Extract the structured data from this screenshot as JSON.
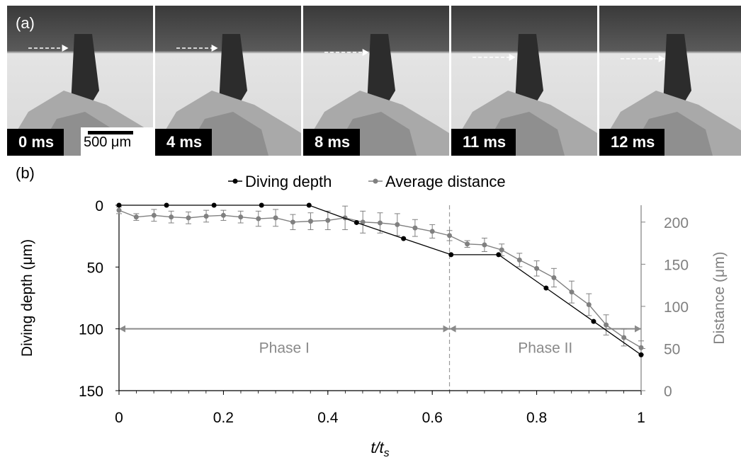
{
  "panel_a": {
    "label": "(a)",
    "frames": [
      {
        "time": "0 ms",
        "arrow_end": 0.42
      },
      {
        "time": "4 ms",
        "arrow_end": 0.43
      },
      {
        "time": "8 ms",
        "arrow_end": 0.45
      },
      {
        "time": "11 ms",
        "arrow_end": 0.44
      },
      {
        "time": "12 ms",
        "arrow_end": 0.45
      }
    ],
    "scale_bar": "500 μm"
  },
  "panel_b": {
    "label": "(b)"
  },
  "colors": {
    "depth": "#000000",
    "distance": "#808080",
    "axis": "#000000",
    "secondary_axis": "#808080"
  },
  "chart_data": {
    "type": "line",
    "xlabel": "t/t",
    "xlabel_sub": "s",
    "ylabel_left": "Diving depth (μm)",
    "ylabel_right": "Distance (μm)",
    "xlim": [
      0,
      1
    ],
    "ylim_left": [
      0,
      150
    ],
    "ylim_left_inverted": true,
    "ylim_right": [
      0,
      220
    ],
    "x_ticks": [
      "0",
      "0.2",
      "0.4",
      "0.6",
      "0.8",
      "1"
    ],
    "y_left_ticks": [
      "0",
      "50",
      "100",
      "150"
    ],
    "y_right_ticks": [
      "0",
      "50",
      "100",
      "150",
      "200"
    ],
    "legend": "top",
    "series": [
      {
        "name": "Diving depth",
        "axis": "left",
        "x": [
          0,
          0.091,
          0.182,
          0.273,
          0.364,
          0.455,
          0.545,
          0.636,
          0.727,
          0.818,
          0.909,
          1.0
        ],
        "y": [
          0,
          0,
          0,
          0,
          0,
          14,
          27,
          40,
          40,
          67,
          94,
          121
        ]
      },
      {
        "name": "Average distance",
        "axis": "right",
        "x": [
          0,
          0.033,
          0.067,
          0.1,
          0.133,
          0.167,
          0.2,
          0.233,
          0.267,
          0.3,
          0.333,
          0.367,
          0.4,
          0.433,
          0.467,
          0.5,
          0.533,
          0.567,
          0.6,
          0.633,
          0.667,
          0.7,
          0.733,
          0.767,
          0.8,
          0.833,
          0.867,
          0.9,
          0.933,
          0.967,
          1.0
        ],
        "y": [
          214,
          206,
          208,
          206,
          205,
          207,
          208,
          206,
          204,
          205,
          200,
          201,
          202,
          205,
          200,
          199,
          197,
          193,
          189,
          184,
          174,
          173,
          167,
          155,
          145,
          134,
          117,
          102,
          78,
          63,
          51
        ],
        "err": [
          4,
          4,
          7,
          7,
          7,
          7,
          6,
          7,
          9,
          10,
          9,
          10,
          11,
          14,
          13,
          12,
          13,
          10,
          8,
          6,
          4,
          8,
          7,
          8,
          9,
          11,
          13,
          13,
          12,
          10,
          8
        ]
      }
    ],
    "annotations": [
      {
        "text": "Phase I",
        "x_from": 0,
        "x_to": 0.633
      },
      {
        "text": "Phase II",
        "x_from": 0.633,
        "x_to": 1.0
      }
    ],
    "phase_divider_x": 0.633,
    "phase_arrow_depth": 100
  }
}
